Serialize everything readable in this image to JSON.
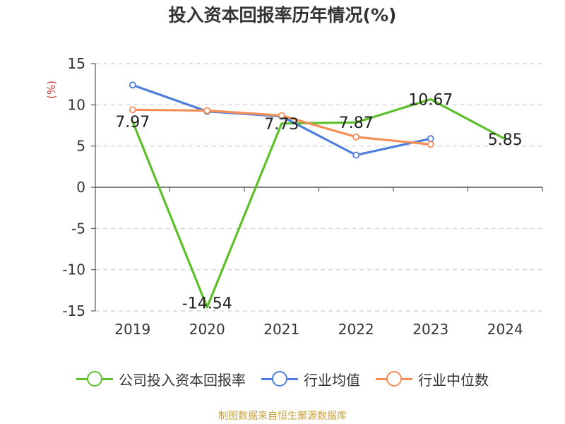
{
  "chart_data": {
    "type": "line",
    "title": "投入资本回报率历年情况(%)",
    "ylabel": "(%)",
    "categories": [
      "2019",
      "2020",
      "2021",
      "2022",
      "2023",
      "2024"
    ],
    "ylim": [
      -15,
      15
    ],
    "yticks": [
      15,
      10,
      5,
      0,
      -5,
      -10,
      -15
    ],
    "grid": true,
    "legend_position": "bottom",
    "series": [
      {
        "name": "公司投入资本回报率",
        "color": "#5cc02b",
        "values": [
          7.97,
          -14.54,
          7.73,
          7.87,
          10.67,
          5.85
        ],
        "labels": [
          "7.97",
          "-14.54",
          "7.73",
          "7.87",
          "10.67",
          "5.85"
        ],
        "markers": false
      },
      {
        "name": "行业均值",
        "color": "#4f7fdc",
        "values": [
          12.4,
          9.2,
          8.6,
          3.9,
          5.9,
          null
        ],
        "markers": true
      },
      {
        "name": "行业中位数",
        "color": "#f58e56",
        "values": [
          9.4,
          9.3,
          8.7,
          6.1,
          5.2,
          null
        ],
        "markers": true
      }
    ]
  },
  "source_note": "制图数据来自恒生聚源数据库"
}
